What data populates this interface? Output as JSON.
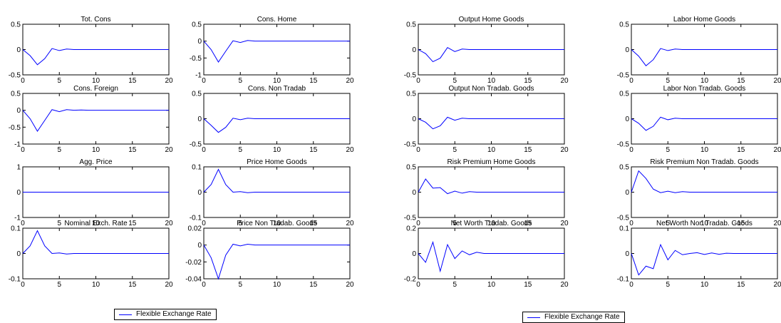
{
  "colors": {
    "series": "#0000ff",
    "axis": "#000000"
  },
  "legends": [
    {
      "label": "Flexible Exchange Rate"
    },
    {
      "label": "Flexible Exchange Rate"
    }
  ],
  "chart_data": [
    {
      "type": "line",
      "title": "Tot. Cons",
      "ylim": [
        -0.5,
        0.5
      ],
      "yticks": [
        "0.5",
        "0",
        "-0.5"
      ],
      "ytick_values": [
        0.5,
        0,
        -0.5
      ],
      "xlim": [
        0,
        20
      ],
      "xticks": [
        "0",
        "5",
        "10",
        "15",
        "20"
      ],
      "series": [
        {
          "values": [
            0,
            -0.12,
            -0.3,
            -0.18,
            0.02,
            -0.02,
            0.01,
            0,
            0,
            0,
            0,
            0,
            0,
            0,
            0,
            0,
            0,
            0,
            0,
            0,
            0
          ]
        }
      ]
    },
    {
      "type": "line",
      "title": "Cons. Home",
      "ylim": [
        -1,
        0.5
      ],
      "yticks": [
        "0.5",
        "0",
        "-0.5",
        "-1"
      ],
      "ytick_values": [
        0.5,
        0,
        -0.5,
        -1
      ],
      "xlim": [
        0,
        20
      ],
      "xticks": [
        "0",
        "5",
        "10",
        "15",
        "20"
      ],
      "series": [
        {
          "values": [
            0,
            -0.25,
            -0.62,
            -0.3,
            0.01,
            -0.04,
            0.02,
            0,
            0,
            0,
            0,
            0,
            0,
            0,
            0,
            0,
            0,
            0,
            0,
            0,
            0
          ]
        }
      ]
    },
    {
      "type": "line",
      "title": "Output Home Goods",
      "ylim": [
        -0.5,
        0.5
      ],
      "yticks": [
        "0.5",
        "0",
        "-0.5"
      ],
      "ytick_values": [
        0.5,
        0,
        -0.5
      ],
      "xlim": [
        0,
        20
      ],
      "xticks": [
        "0",
        "5",
        "10",
        "15",
        "20"
      ],
      "series": [
        {
          "values": [
            0,
            -0.08,
            -0.24,
            -0.17,
            0.04,
            -0.04,
            0.01,
            0,
            0,
            0,
            0,
            0,
            0,
            0,
            0,
            0,
            0,
            0,
            0,
            0,
            0
          ]
        }
      ]
    },
    {
      "type": "line",
      "title": "Labor Home Goods",
      "ylim": [
        -0.5,
        0.5
      ],
      "yticks": [
        "0.5",
        "0",
        "-0.5"
      ],
      "ytick_values": [
        0.5,
        0,
        -0.5
      ],
      "xlim": [
        0,
        20
      ],
      "xticks": [
        "0",
        "5",
        "10",
        "15",
        "20"
      ],
      "series": [
        {
          "values": [
            0,
            -0.13,
            -0.32,
            -0.2,
            0.02,
            -0.02,
            0.01,
            0,
            0,
            0,
            0,
            0,
            0,
            0,
            0,
            0,
            0,
            0,
            0,
            0,
            0
          ]
        }
      ]
    },
    {
      "type": "line",
      "title": "Cons. Foreign",
      "ylim": [
        -1,
        0.5
      ],
      "yticks": [
        "0.5",
        "0",
        "-0.5",
        "-1"
      ],
      "ytick_values": [
        0.5,
        0,
        -0.5,
        -1
      ],
      "xlim": [
        0,
        20
      ],
      "xticks": [
        "0",
        "5",
        "10",
        "15",
        "20"
      ],
      "series": [
        {
          "values": [
            0,
            -0.25,
            -0.62,
            -0.3,
            0.02,
            -0.04,
            0.02,
            0,
            0.01,
            0,
            0,
            0,
            0,
            0,
            0,
            0,
            0,
            0,
            0,
            0,
            0
          ]
        }
      ]
    },
    {
      "type": "line",
      "title": "Cons. Non Tradab",
      "ylim": [
        -0.5,
        0.5
      ],
      "yticks": [
        "0.5",
        "0",
        "-0.5"
      ],
      "ytick_values": [
        0.5,
        0,
        -0.5
      ],
      "xlim": [
        0,
        20
      ],
      "xticks": [
        "0",
        "5",
        "10",
        "15",
        "20"
      ],
      "series": [
        {
          "values": [
            0,
            -0.13,
            -0.27,
            -0.17,
            0.01,
            -0.02,
            0.01,
            0,
            0,
            0,
            0,
            0,
            0,
            0,
            0,
            0,
            0,
            0,
            0,
            0,
            0
          ]
        }
      ]
    },
    {
      "type": "line",
      "title": "Output Non Tradab. Goods",
      "ylim": [
        -0.5,
        0.5
      ],
      "yticks": [
        "0.5",
        "0",
        "-0.5"
      ],
      "ytick_values": [
        0.5,
        0,
        -0.5
      ],
      "xlim": [
        0,
        20
      ],
      "xticks": [
        "0",
        "5",
        "10",
        "15",
        "20"
      ],
      "series": [
        {
          "values": [
            0,
            -0.07,
            -0.2,
            -0.14,
            0.03,
            -0.03,
            0.01,
            0,
            0,
            0,
            0,
            0,
            0,
            0,
            0,
            0,
            0,
            0,
            0,
            0,
            0
          ]
        }
      ]
    },
    {
      "type": "line",
      "title": "Labor Non Tradab. Goods",
      "ylim": [
        -0.5,
        0.5
      ],
      "yticks": [
        "0.5",
        "0",
        "-0.5"
      ],
      "ytick_values": [
        0.5,
        0,
        -0.5
      ],
      "xlim": [
        0,
        20
      ],
      "xticks": [
        "0",
        "5",
        "10",
        "15",
        "20"
      ],
      "series": [
        {
          "values": [
            0,
            -0.09,
            -0.23,
            -0.15,
            0.03,
            -0.02,
            0.01,
            0,
            0,
            0,
            0,
            0,
            0,
            0,
            0,
            0,
            0,
            0,
            0,
            0,
            0
          ]
        }
      ]
    },
    {
      "type": "line",
      "title": "Agg. Price",
      "ylim": [
        -1,
        1
      ],
      "yticks": [
        "1",
        "0",
        "-1"
      ],
      "ytick_values": [
        1,
        0,
        -1
      ],
      "xlim": [
        0,
        20
      ],
      "xticks": [
        "0",
        "5",
        "10",
        "15",
        "20"
      ],
      "series": [
        {
          "values": [
            0,
            0,
            0,
            0,
            0,
            0,
            0,
            0,
            0,
            0,
            0,
            0,
            0,
            0,
            0,
            0,
            0,
            0,
            0,
            0,
            0
          ]
        }
      ]
    },
    {
      "type": "line",
      "title": "Price Home Goods",
      "ylim": [
        -0.1,
        0.1
      ],
      "yticks": [
        "0.1",
        "0",
        "-0.1"
      ],
      "ytick_values": [
        0.1,
        0,
        -0.1
      ],
      "xlim": [
        0,
        20
      ],
      "xticks": [
        "0",
        "5",
        "10",
        "15",
        "20"
      ],
      "series": [
        {
          "values": [
            0,
            0.03,
            0.09,
            0.03,
            0.0,
            0.002,
            -0.002,
            0,
            0,
            0,
            0,
            0,
            0,
            0,
            0,
            0,
            0,
            0,
            0,
            0,
            0
          ]
        }
      ]
    },
    {
      "type": "line",
      "title": "Risk Premium Home Goods",
      "ylim": [
        -0.5,
        0.5
      ],
      "yticks": [
        "0.5",
        "0",
        "-0.5"
      ],
      "ytick_values": [
        0.5,
        0,
        -0.5
      ],
      "xlim": [
        0,
        20
      ],
      "xticks": [
        "0",
        "5",
        "10",
        "15",
        "20"
      ],
      "series": [
        {
          "values": [
            0,
            0.26,
            0.08,
            0.09,
            -0.03,
            0.02,
            -0.02,
            0.01,
            0,
            0,
            0,
            0,
            0,
            0,
            0,
            0,
            0,
            0,
            0,
            0,
            0
          ]
        }
      ]
    },
    {
      "type": "line",
      "title": "Risk Premium Non Tradab. Goods",
      "ylim": [
        -0.5,
        0.5
      ],
      "yticks": [
        "0.5",
        "0",
        "-0.5"
      ],
      "ytick_values": [
        0.5,
        0,
        -0.5
      ],
      "xlim": [
        0,
        20
      ],
      "xticks": [
        "0",
        "5",
        "10",
        "15",
        "20"
      ],
      "series": [
        {
          "values": [
            0,
            0.42,
            0.27,
            0.06,
            -0.01,
            0.02,
            -0.01,
            0.01,
            0,
            0,
            0,
            0,
            0,
            0,
            0,
            0,
            0,
            0,
            0,
            0,
            0
          ]
        }
      ]
    },
    {
      "type": "line",
      "title": "Nominal Exch. Rate",
      "ylim": [
        -0.1,
        0.1
      ],
      "yticks": [
        "0.1",
        "0",
        "-0.1"
      ],
      "ytick_values": [
        0.1,
        0,
        -0.1
      ],
      "xlim": [
        0,
        20
      ],
      "xticks": [
        "0",
        "5",
        "10",
        "15",
        "20"
      ],
      "series": [
        {
          "values": [
            0,
            0.03,
            0.09,
            0.03,
            0.0,
            0.002,
            -0.002,
            0,
            0,
            0,
            0,
            0,
            0,
            0,
            0,
            0,
            0,
            0,
            0,
            0,
            0
          ]
        }
      ]
    },
    {
      "type": "line",
      "title": "Price Non Tradab. Goods",
      "ylim": [
        -0.04,
        0.02
      ],
      "yticks": [
        "0.02",
        "0",
        "-0.02",
        "-0.04"
      ],
      "ytick_values": [
        0.02,
        0,
        -0.02,
        -0.04
      ],
      "xlim": [
        0,
        20
      ],
      "xticks": [
        "0",
        "5",
        "10",
        "15",
        "20"
      ],
      "series": [
        {
          "values": [
            0,
            -0.015,
            -0.04,
            -0.012,
            0.001,
            -0.001,
            0.001,
            0,
            0,
            0,
            0,
            0,
            0,
            0,
            0,
            0,
            0,
            0,
            0,
            0,
            0
          ]
        }
      ]
    },
    {
      "type": "line",
      "title": "Net Worth Tradab. Goods",
      "ylim": [
        -0.2,
        0.2
      ],
      "yticks": [
        "0.2",
        "0",
        "-0.2"
      ],
      "ytick_values": [
        0.2,
        0,
        -0.2
      ],
      "xlim": [
        0,
        20
      ],
      "xticks": [
        "0",
        "5",
        "10",
        "15",
        "20"
      ],
      "series": [
        {
          "values": [
            0,
            -0.07,
            0.09,
            -0.14,
            0.07,
            -0.04,
            0.02,
            -0.01,
            0.01,
            0,
            0,
            0,
            0,
            0,
            0,
            0,
            0,
            0,
            0,
            0,
            0
          ]
        }
      ]
    },
    {
      "type": "line",
      "title": "Net Worth Non Tradab. Goods",
      "ylim": [
        -0.1,
        0.1
      ],
      "yticks": [
        "0.1",
        "0",
        "-0.1"
      ],
      "ytick_values": [
        0.1,
        0,
        -0.1
      ],
      "xlim": [
        0,
        20
      ],
      "xticks": [
        "0",
        "5",
        "10",
        "15",
        "20"
      ],
      "series": [
        {
          "values": [
            0,
            -0.085,
            -0.05,
            -0.06,
            0.035,
            -0.025,
            0.012,
            -0.005,
            0,
            0.003,
            -0.004,
            0.002,
            -0.003,
            0.001,
            0,
            0,
            0,
            0,
            0,
            0,
            0
          ]
        }
      ]
    }
  ]
}
